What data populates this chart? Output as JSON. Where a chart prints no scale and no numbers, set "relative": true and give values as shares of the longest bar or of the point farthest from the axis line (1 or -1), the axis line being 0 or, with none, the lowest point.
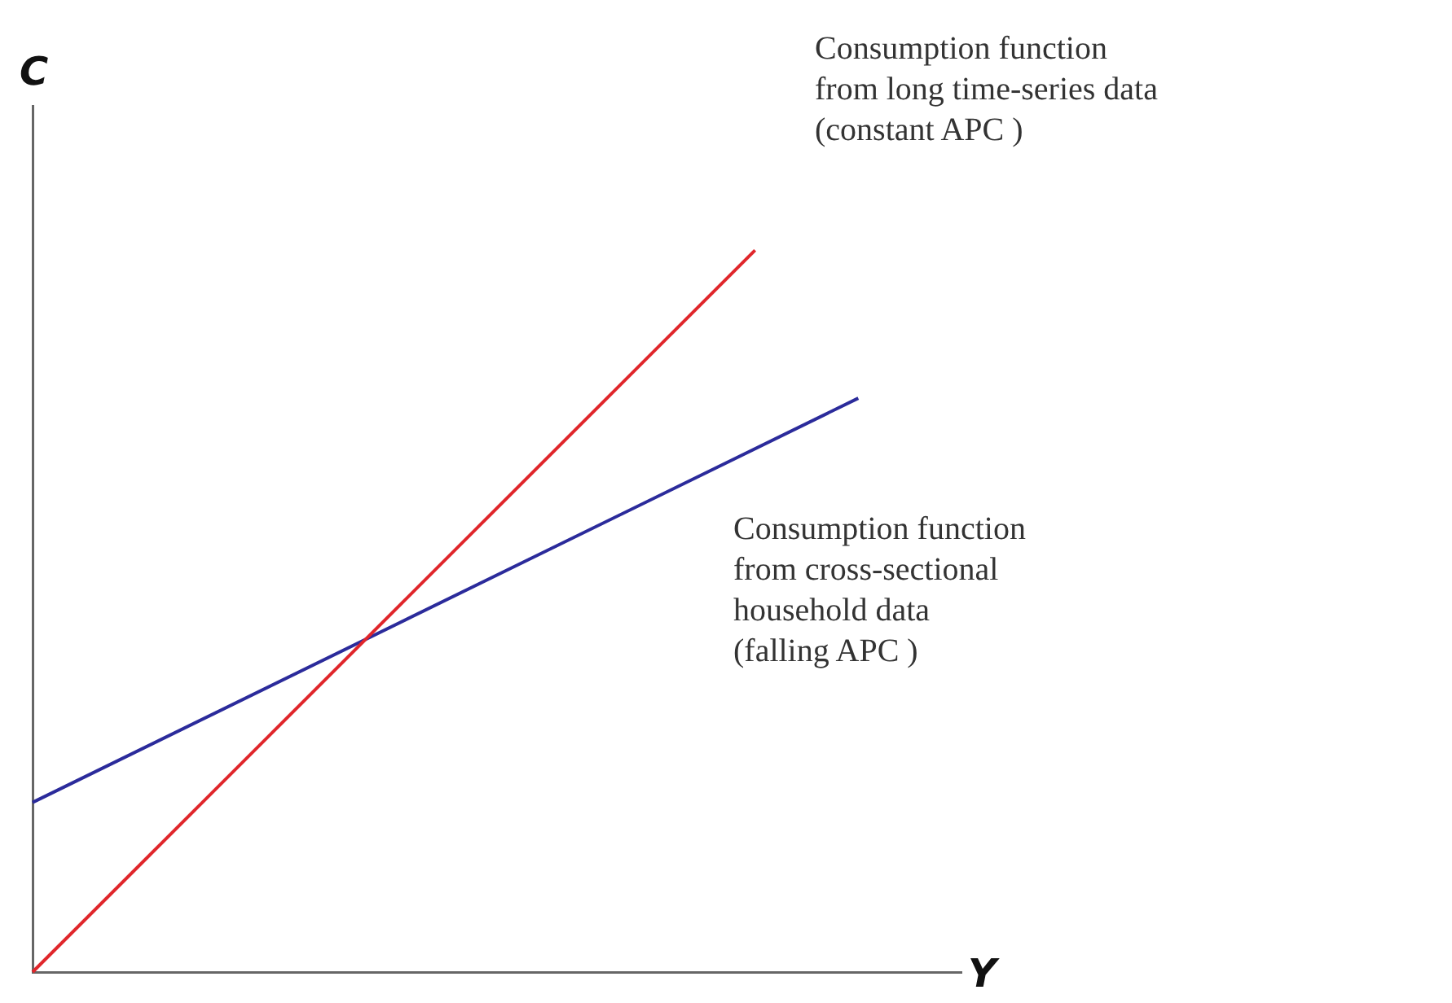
{
  "chart_data": {
    "type": "line",
    "relative": true,
    "xlabel": "Y",
    "ylabel": "C",
    "categories": [
      null,
      null,
      null,
      null,
      null,
      null,
      null,
      null,
      null,
      null
    ],
    "series": [
      {
        "color": "#e0262b",
        "values": [
          0,
          null,
          null,
          null,
          null,
          null,
          null,
          1,
          null,
          null
        ]
      },
      {
        "color": "#2b2b9b",
        "values": [
          0.235,
          null,
          null,
          null,
          null,
          null,
          null,
          null,
          0.795,
          null
        ]
      }
    ],
    "annotations": [
      "Consumption function\nfrom long time-series data\n(constant APC )",
      "Consumption function\nfrom cross-sectional\nhousehold data\n(falling APC )"
    ],
    "grid": false,
    "legend": false,
    "marker": "none",
    "line_style": "solid"
  }
}
